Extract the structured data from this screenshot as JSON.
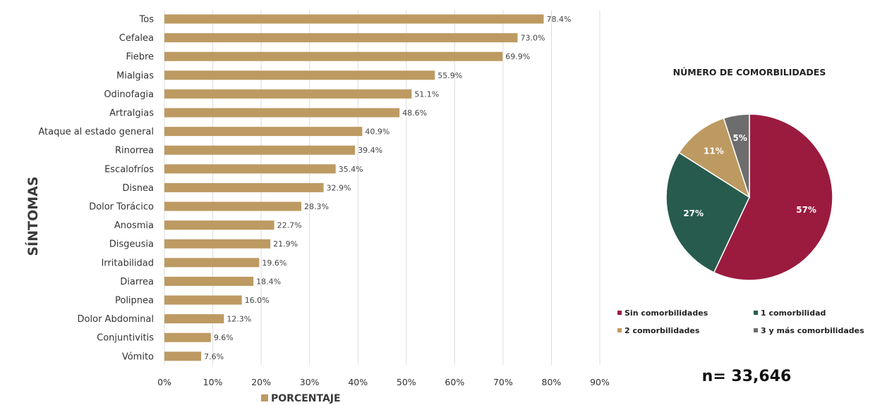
{
  "chart_data": [
    {
      "type": "bar",
      "orientation": "horizontal",
      "categories": [
        "Tos",
        "Cefalea",
        "Fiebre",
        "Mialgias",
        "Odinofagia",
        "Artralgias",
        "Ataque al estado general",
        "Rinorrea",
        "Escalofríos",
        "Disnea",
        "Dolor Torácico",
        "Anosmia",
        "Disgeusia",
        "Irritabilidad",
        "Diarrea",
        "Polipnea",
        "Dolor Abdominal",
        "Conjuntivitis",
        "Vómito"
      ],
      "values": [
        78.4,
        73.0,
        69.9,
        55.9,
        51.1,
        48.6,
        40.9,
        39.4,
        35.4,
        32.9,
        28.3,
        22.7,
        21.9,
        19.6,
        18.4,
        16.0,
        12.3,
        9.6,
        7.6
      ],
      "value_labels": [
        "78.4%",
        "73.0%",
        "69.9%",
        "55.9%",
        "51.1%",
        "48.6%",
        "40.9%",
        "39.4%",
        "35.4%",
        "32.9%",
        "28.3%",
        "22.7%",
        "21.9%",
        "19.6%",
        "18.4%",
        "16.0%",
        "12.3%",
        "9.6%",
        "7.6%"
      ],
      "xlim": [
        0,
        90
      ],
      "x_ticks": [
        "0%",
        "10%",
        "20%",
        "30%",
        "40%",
        "50%",
        "60%",
        "70%",
        "80%",
        "90%"
      ],
      "ylabel": "SÍNTOMAS",
      "legend": "PORCENTAJE",
      "color": "#bd9a62",
      "grid": true
    },
    {
      "type": "pie",
      "title": "NÚMERO DE COMORBILIDADES",
      "labels": [
        "Sin comorbilidades",
        "1 comorbilidad",
        "2 comorbilidades",
        "3 y más comorbilidades"
      ],
      "values": [
        57,
        27,
        11,
        5
      ],
      "value_labels": [
        "57%",
        "27%",
        "11%",
        "5%"
      ],
      "colors": [
        "#9b1b3f",
        "#275b4d",
        "#bd9a62",
        "#6d6d6d"
      ],
      "legend_position": "bottom"
    }
  ],
  "sample_size": "n= 33,646"
}
